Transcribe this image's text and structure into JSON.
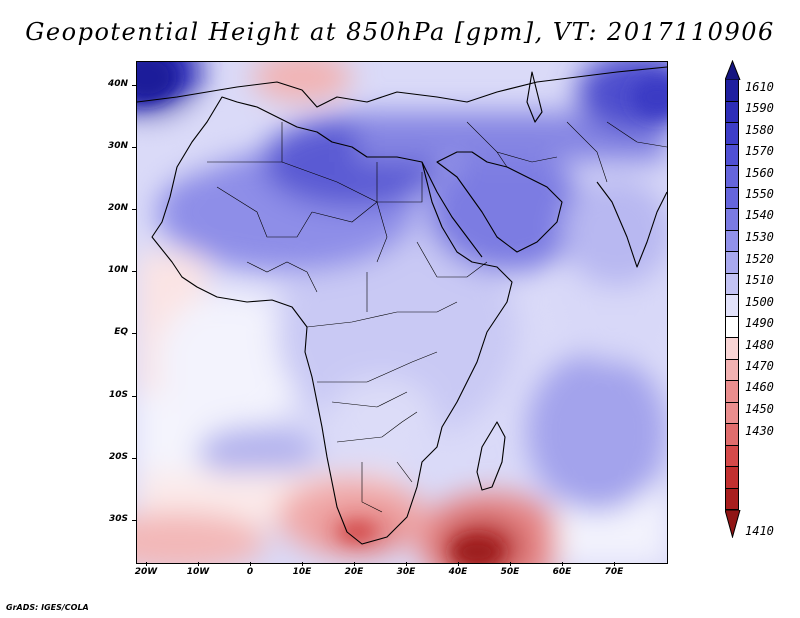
{
  "title": "Geopotential Height at 850hPa [gpm], VT: 2017110906",
  "footer": "GrADS: IGES/COLA",
  "lat_labels": [
    "40N",
    "30N",
    "20N",
    "10N",
    "EQ",
    "10S",
    "20S",
    "30S"
  ],
  "lon_labels": [
    "20W",
    "10W",
    "0",
    "10E",
    "20E",
    "30E",
    "40E",
    "50E",
    "60E",
    "70E"
  ],
  "colorbar": {
    "levels": [
      "1610",
      "1590",
      "1580",
      "1570",
      "1560",
      "1550",
      "1540",
      "1530",
      "1520",
      "1510",
      "1500",
      "1490",
      "1480",
      "1470",
      "1460",
      "1450",
      "1430",
      "1410"
    ],
    "colors": [
      "#1f1f9f",
      "#2d2db8",
      "#3d3dc8",
      "#5050d4",
      "#6565dc",
      "#7b7be3",
      "#9191ea",
      "#a9a9ef",
      "#c3c3f4",
      "#e2e2fa",
      "#ffffff",
      "#f9d5d5",
      "#f2b2b2",
      "#ea8e8e",
      "#e06d6d",
      "#d54a4a",
      "#c23030",
      "#a81e1e"
    ],
    "top_triangle_color": "#141480",
    "bottom_triangle_color": "#901515"
  }
}
